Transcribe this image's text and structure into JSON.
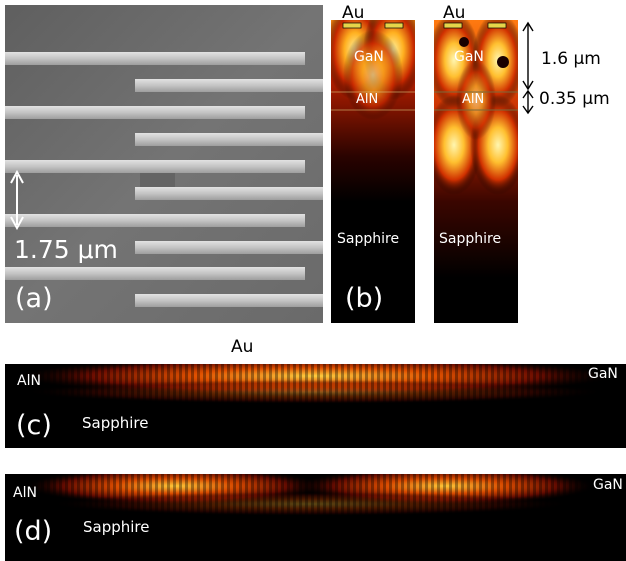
{
  "panel_a": {
    "label": "(a)",
    "scale_label": "1.75 μm"
  },
  "panel_b": {
    "label": "(b)",
    "au_left": "Au",
    "au_right": "Au",
    "gan_left": "GaN",
    "gan_right": "GaN",
    "aln_left": "AlN",
    "aln_right": "AlN",
    "sapphire_left": "Sapphire",
    "sapphire_right": "Sapphire",
    "dim_gan": "1.6 μm",
    "dim_aln": "0.35 μm"
  },
  "panel_c": {
    "label": "(c)",
    "au": "Au",
    "aln": "AlN",
    "gan": "GaN",
    "sapphire": "Sapphire"
  },
  "panel_d": {
    "label": "(d)",
    "aln": "AlN",
    "gan": "GaN",
    "sapphire": "Sapphire"
  },
  "colors": {
    "sem_background": "#6e6e6e",
    "sem_finger": "#c9c9c9",
    "field_hot": "#ffe070",
    "field_mid": "#e0400a",
    "field_dark": "#000000",
    "electrode": "#e6d54a"
  }
}
